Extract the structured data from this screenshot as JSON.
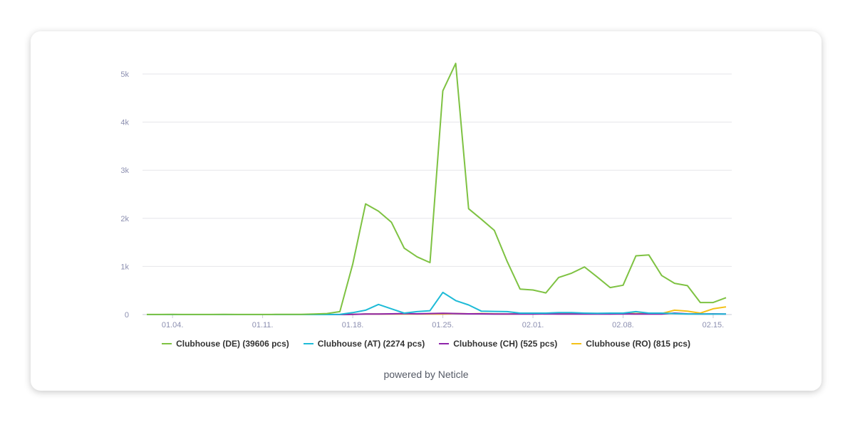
{
  "footer": {
    "text": "powered by Neticle"
  },
  "chart_data": {
    "type": "line",
    "xlabel": "",
    "ylabel": "",
    "ylim": [
      0,
      5000
    ],
    "y_ticks": [
      0,
      1000,
      2000,
      3000,
      4000,
      5000
    ],
    "y_tick_labels": [
      "0",
      "1k",
      "2k",
      "3k",
      "4k",
      "5k"
    ],
    "x_ticks": [
      "01.04.",
      "01.11.",
      "01.18.",
      "01.25.",
      "02.01.",
      "02.08.",
      "02.15."
    ],
    "x_tick_positions": [
      2,
      9,
      16,
      23,
      30,
      37,
      44
    ],
    "x": [
      "01.02.",
      "01.03.",
      "01.04.",
      "01.05.",
      "01.06.",
      "01.07.",
      "01.08.",
      "01.09.",
      "01.10.",
      "01.11.",
      "01.12.",
      "01.13.",
      "01.14.",
      "01.15.",
      "01.16.",
      "01.17.",
      "01.18.",
      "01.19.",
      "01.20.",
      "01.21.",
      "01.22.",
      "01.23.",
      "01.24.",
      "01.25.",
      "01.26.",
      "01.27.",
      "01.28.",
      "01.29.",
      "01.30.",
      "01.31.",
      "02.01.",
      "02.02.",
      "02.03.",
      "02.04.",
      "02.05.",
      "02.06.",
      "02.07.",
      "02.08.",
      "02.09.",
      "02.10.",
      "02.11.",
      "02.12.",
      "02.13.",
      "02.14.",
      "02.15.",
      "02.16."
    ],
    "grid": true,
    "legend_position": "bottom",
    "series": [
      {
        "name": "Clubhouse (DE) (39606 pcs)",
        "color": "#7ec242",
        "values": [
          2,
          2,
          3,
          2,
          2,
          2,
          3,
          2,
          2,
          2,
          3,
          3,
          5,
          10,
          20,
          60,
          1050,
          2300,
          2150,
          1920,
          1380,
          1200,
          1080,
          4650,
          5220,
          2200,
          1980,
          1750,
          1100,
          530,
          510,
          450,
          770,
          860,
          990,
          780,
          560,
          610,
          1220,
          1240,
          810,
          650,
          600,
          250,
          250,
          350
        ]
      },
      {
        "name": "Clubhouse (AT) (2274 pcs)",
        "color": "#1ebbd7",
        "values": [
          0,
          0,
          0,
          0,
          0,
          0,
          0,
          0,
          0,
          0,
          0,
          0,
          0,
          0,
          0,
          5,
          40,
          90,
          210,
          120,
          30,
          60,
          80,
          460,
          290,
          200,
          70,
          65,
          60,
          30,
          30,
          30,
          40,
          40,
          30,
          25,
          30,
          30,
          60,
          30,
          30,
          20,
          10,
          10,
          10,
          10
        ]
      },
      {
        "name": "Clubhouse (CH) (525 pcs)",
        "color": "#8e24aa",
        "values": [
          0,
          0,
          0,
          0,
          0,
          0,
          0,
          0,
          0,
          0,
          0,
          0,
          0,
          0,
          0,
          0,
          5,
          10,
          10,
          15,
          20,
          15,
          20,
          25,
          20,
          15,
          15,
          10,
          10,
          10,
          10,
          15,
          10,
          10,
          10,
          10,
          10,
          15,
          10,
          10,
          10,
          30,
          15,
          10,
          15,
          10
        ]
      },
      {
        "name": "Clubhouse (RO) (815 pcs)",
        "color": "#f4c118",
        "values": [
          0,
          0,
          0,
          0,
          0,
          0,
          0,
          0,
          0,
          0,
          0,
          0,
          0,
          0,
          0,
          0,
          5,
          10,
          10,
          10,
          10,
          10,
          10,
          10,
          20,
          15,
          20,
          15,
          10,
          15,
          30,
          20,
          20,
          20,
          20,
          20,
          20,
          20,
          20,
          20,
          20,
          90,
          70,
          30,
          120,
          160
        ]
      }
    ]
  }
}
